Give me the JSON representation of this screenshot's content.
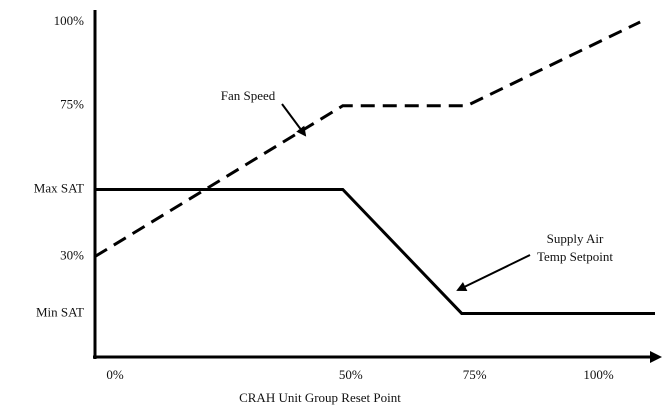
{
  "chart_data": {
    "type": "line",
    "x_label": "CRAH Unit Group Reset Point",
    "xlim": [
      0,
      113
    ],
    "ylim": [
      0,
      100
    ],
    "xticks": [
      {
        "value": 0,
        "label": "0%"
      },
      {
        "value": 50,
        "label": "50%"
      },
      {
        "value": 75,
        "label": "75%"
      },
      {
        "value": 100,
        "label": "100%"
      }
    ],
    "yticks": [
      {
        "value": 100,
        "label": "100%"
      },
      {
        "value": 75,
        "label": "75%"
      },
      {
        "value": 50,
        "label": "Max SAT"
      },
      {
        "value": 30,
        "label": "30%"
      },
      {
        "value": 13,
        "label": "Min SAT"
      }
    ],
    "grid": false,
    "series": [
      {
        "color": "#000000",
        "dashed": true,
        "x": [
          0,
          50,
          75,
          110
        ],
        "values": [
          30,
          75,
          75,
          100
        ]
      },
      {
        "color": "#000000",
        "dashed": false,
        "x": [
          0,
          50,
          74,
          113
        ],
        "values": [
          50,
          50,
          13,
          13
        ]
      }
    ],
    "annotations": [
      {
        "lines": [
          "Fan Speed"
        ]
      },
      {
        "lines": [
          "Supply Air",
          "Temp Setpoint"
        ]
      }
    ]
  }
}
